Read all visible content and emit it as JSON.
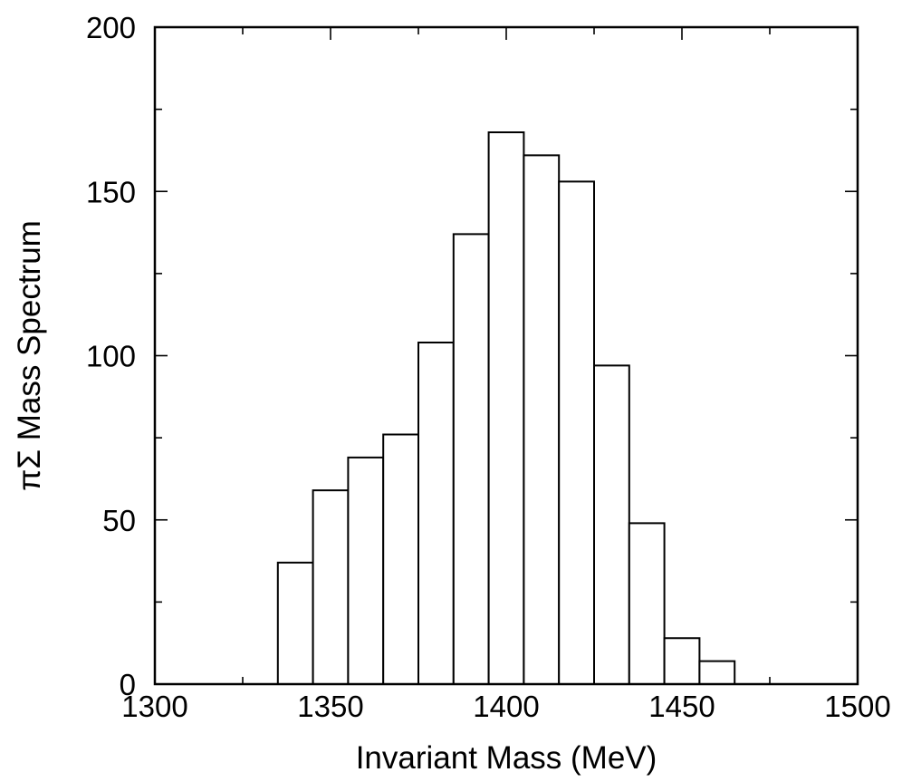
{
  "chart_data": {
    "type": "bar",
    "title": "",
    "xlabel": "Invariant Mass (MeV)",
    "ylabel": "πΣ Mass Spectrum",
    "xlim": [
      1300,
      1500
    ],
    "ylim": [
      0,
      200
    ],
    "xticks": [
      1300,
      1350,
      1400,
      1450,
      1500
    ],
    "yticks": [
      0,
      50,
      100,
      150,
      200
    ],
    "x_minor_step": 25,
    "y_minor_step": 25,
    "grid": false,
    "legend": "none",
    "bin_width": 10,
    "bin_left_edges": [
      1335,
      1345,
      1355,
      1365,
      1375,
      1385,
      1395,
      1405,
      1415,
      1425,
      1435,
      1445,
      1455
    ],
    "values": [
      37,
      59,
      69,
      76,
      104,
      137,
      168,
      161,
      153,
      97,
      49,
      14,
      7
    ]
  }
}
